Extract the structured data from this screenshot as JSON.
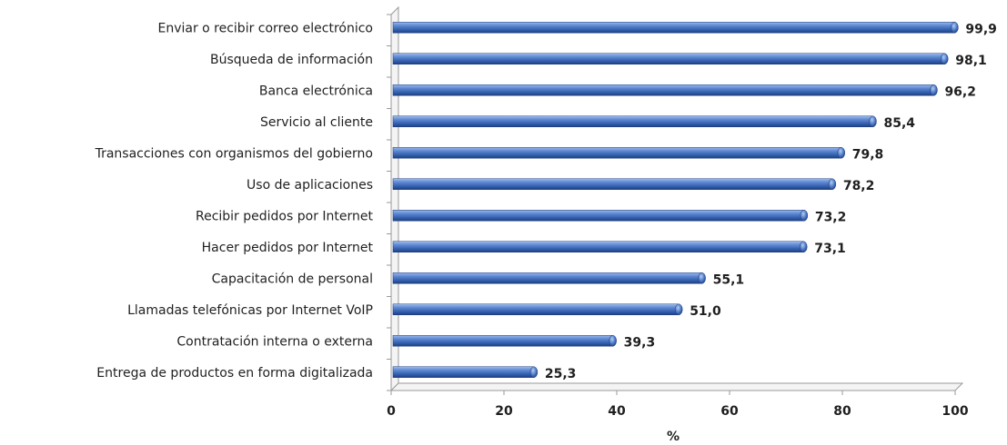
{
  "chart_data": {
    "type": "bar",
    "orientation": "horizontal",
    "categories": [
      "Enviar o recibir correo electrónico",
      "Búsqueda de información",
      "Banca electrónica",
      "Servicio al cliente",
      "Transacciones con organismos del gobierno",
      "Uso de aplicaciones",
      "Recibir pedidos por Internet",
      "Hacer pedidos por Internet",
      "Capacitación de personal",
      "Llamadas telefónicas por Internet VoIP",
      "Contratación interna o externa",
      "Entrega de productos en forma digitalizada"
    ],
    "values": [
      99.9,
      98.1,
      96.2,
      85.4,
      79.8,
      78.2,
      73.2,
      73.1,
      55.1,
      51.0,
      39.3,
      25.3
    ],
    "value_labels": [
      "99,9",
      "98,1",
      "96,2",
      "85,4",
      "79,8",
      "78,2",
      "73,2",
      "73,1",
      "55,1",
      "51,0",
      "39,3",
      "25,3"
    ],
    "xlim": [
      0,
      100
    ],
    "xticks": [
      0,
      20,
      40,
      60,
      80,
      100
    ],
    "xlabel": "%",
    "ylabel": "",
    "title": "",
    "grid": false,
    "colors": {
      "bar": "#4472c4",
      "bar_light": "#8fb0e8",
      "bar_dark": "#1f3f80"
    }
  }
}
